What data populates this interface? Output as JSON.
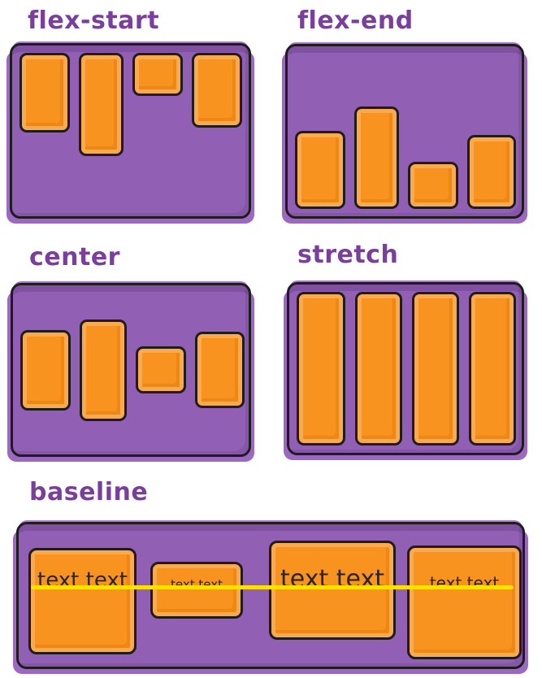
{
  "diagram": {
    "topic": "CSS flexbox align-items values",
    "type": "hand-drawn illustration"
  },
  "panels": [
    {
      "label": "flex-start"
    },
    {
      "label": "flex-end"
    },
    {
      "label": "center"
    },
    {
      "label": "stretch"
    },
    {
      "label": "baseline"
    }
  ],
  "baseline_panel": {
    "items": [
      {
        "text": "text text"
      },
      {
        "text": "text text"
      },
      {
        "text": "text text"
      },
      {
        "text": "text text"
      }
    ]
  },
  "colors": {
    "container_purple": "#9160b4",
    "container_shadow_purple": "#9c68c2",
    "item_orange": "#f7931e",
    "item_orange_highlight": "#f9aa4e",
    "item_orange_shade": "#ef8714",
    "outline_black": "#1f1c1e",
    "label_purple": "#7a3f9d",
    "baseline_yellow": "#ffe000",
    "box_text_dark": "#2b2426",
    "background": "#ffffff"
  }
}
